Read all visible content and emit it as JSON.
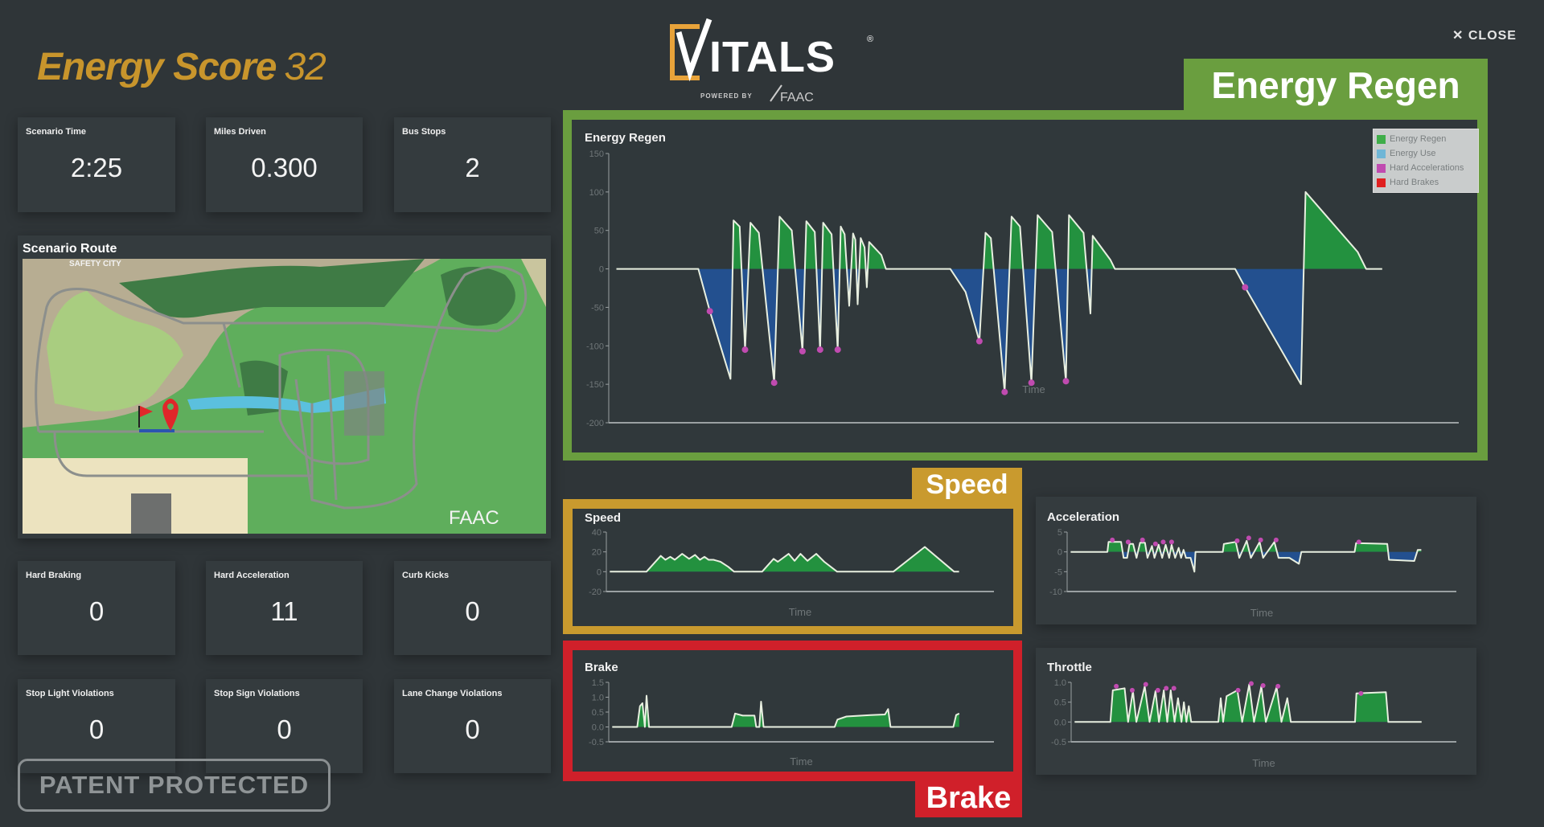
{
  "header": {
    "energy_score_label": "Energy Score",
    "energy_score_value": "32",
    "logo_text": "VITALS",
    "logo_powered_by": "POWERED BY",
    "logo_brand": "FAAC",
    "close_label": "CLOSE",
    "close_icon": "x-icon"
  },
  "stats": [
    {
      "label": "Scenario Time",
      "value": "2:25"
    },
    {
      "label": "Miles Driven",
      "value": "0.300"
    },
    {
      "label": "Bus Stops",
      "value": "2"
    },
    {
      "label": "Hard Braking",
      "value": "0"
    },
    {
      "label": "Hard Acceleration",
      "value": "11"
    },
    {
      "label": "Curb Kicks",
      "value": "0"
    },
    {
      "label": "Stop Light Violations",
      "value": "0"
    },
    {
      "label": "Stop Sign Violations",
      "value": "0"
    },
    {
      "label": "Lane Change Violations",
      "value": "0"
    }
  ],
  "route": {
    "title": "Scenario Route",
    "map_label": "SAFETY CITY",
    "map_watermark": "FAAC"
  },
  "patent_label": "PATENT PROTECTED",
  "highlights": {
    "energy_regen": "Energy Regen",
    "speed": "Speed",
    "brake": "Brake"
  },
  "colors": {
    "gold": "#c8952c",
    "regen_frame": "#6a9e3f",
    "speed_frame": "#c99a2e",
    "brake_frame": "#d0202a",
    "positive_fill": "#23913f",
    "negative_fill": "#23508f",
    "marker": "#c04bb0",
    "line": "#e8efe0"
  },
  "legend": [
    {
      "label": "Energy Regen",
      "color": "#3fae49"
    },
    {
      "label": "Energy Use",
      "color": "#6fb6d6"
    },
    {
      "label": "Hard Accelerations",
      "color": "#c04bb0"
    },
    {
      "label": "Hard Brakes",
      "color": "#e02020"
    }
  ],
  "chart_data": [
    {
      "id": "energy",
      "type": "area",
      "title": "Energy Regen",
      "xlabel": "Time",
      "ylim": [
        -200,
        150
      ],
      "yticks": [
        150,
        100,
        50,
        0,
        -50,
        -100,
        -150,
        -200
      ],
      "xlim": [
        -1,
        110
      ],
      "grid": false,
      "legend": "top-right",
      "series": [
        {
          "x": [
            0,
            10.7,
            12.2,
            14.9,
            15.3,
            16.1,
            16.8,
            17.5,
            18.6,
            20.6,
            21.3,
            22.9,
            24.3,
            24.8,
            25.9,
            26.6,
            27.0,
            28.1,
            28.9,
            29.3,
            29.8,
            30.4,
            30.9,
            31.2,
            31.5,
            31.9,
            32.4,
            32.7,
            33.0,
            34.6,
            35.2,
            43.6,
            45.6,
            47.4,
            48.2,
            48.9,
            50.7,
            51.6,
            52.7,
            54.2,
            55.0,
            56.9,
            58.7,
            59.1,
            61.0,
            61.9,
            62.2,
            64.5,
            65.1,
            80.8,
            82.1,
            89.4,
            90.0,
            96.8,
            97.9,
            100
          ],
          "y": [
            0,
            0,
            -55,
            -143,
            63,
            55,
            -105,
            60,
            47,
            -148,
            68,
            50,
            -107,
            62,
            48,
            -105,
            60,
            45,
            -105,
            55,
            45,
            -48,
            46,
            38,
            -46,
            40,
            28,
            -24,
            35,
            18,
            0,
            0,
            -30,
            -94,
            47,
            40,
            -160,
            68,
            55,
            -148,
            70,
            48,
            -146,
            70,
            47,
            -58,
            43,
            12,
            0,
            0,
            -24,
            -150,
            100,
            22,
            0,
            0
          ]
        }
      ],
      "markers": {
        "name": "Hard Accelerations",
        "x": [
          12.2,
          16.8,
          20.6,
          24.3,
          26.6,
          28.9,
          47.4,
          50.7,
          54.2,
          58.7,
          82.1
        ],
        "y": [
          -55,
          -105,
          -148,
          -107,
          -105,
          -105,
          -94,
          -160,
          -148,
          -146,
          -24
        ]
      }
    },
    {
      "id": "speed",
      "type": "area",
      "title": "Speed",
      "xlabel": "Time",
      "ylim": [
        -20,
        40
      ],
      "yticks": [
        40,
        20,
        0,
        -20
      ],
      "xlim": [
        -1,
        110
      ],
      "series": [
        {
          "x": [
            0,
            10.5,
            14.6,
            15.9,
            17.3,
            18.6,
            20.7,
            22.7,
            24.4,
            25.8,
            27.1,
            28.3,
            29.7,
            31.7,
            33.9,
            35.6,
            43.6,
            46.9,
            48.1,
            51.2,
            52.9,
            54.6,
            56.6,
            59.1,
            61.4,
            65.1,
            81.2,
            90.2,
            98.6,
            100
          ],
          "y": [
            0,
            0,
            16,
            12,
            15,
            12,
            18,
            13,
            17,
            12,
            15,
            12,
            12,
            10,
            5,
            0,
            0,
            13,
            10,
            18,
            11,
            18,
            11,
            18,
            10,
            0,
            0,
            25,
            0,
            0
          ]
        }
      ]
    },
    {
      "id": "accel",
      "type": "area",
      "title": "Acceleration",
      "xlabel": "Time",
      "ylim": [
        -10,
        5
      ],
      "yticks": [
        5,
        0,
        -5,
        -10
      ],
      "xlim": [
        -1,
        110
      ],
      "series": [
        {
          "x": [
            0,
            10.5,
            10.8,
            14.4,
            15.1,
            16.1,
            16.8,
            17.8,
            18.8,
            19.8,
            21.2,
            21.9,
            23.2,
            23.9,
            25.1,
            26.1,
            27.1,
            28.1,
            28.8,
            29.8,
            30.8,
            31.5,
            32.2,
            32.9,
            34.2,
            35.3,
            35.6,
            43.4,
            43.7,
            47.1,
            48.1,
            50.2,
            51.4,
            53.9,
            54.9,
            58.1,
            59.3,
            62.4,
            65.1,
            65.8,
            81,
            81.4,
            90.3,
            90.8,
            98,
            99,
            100
          ],
          "y": [
            0,
            0,
            2.5,
            2.5,
            -1.5,
            -1.5,
            2,
            2,
            -1.5,
            2.3,
            2.3,
            -1.5,
            1.5,
            -1.5,
            1.8,
            -1.5,
            1.8,
            -1.5,
            1.8,
            -1.5,
            1,
            -1.5,
            0.5,
            -1.5,
            -1.5,
            -5,
            0,
            0,
            2,
            2.5,
            -1.5,
            2.8,
            -1.5,
            2.5,
            -1.5,
            2.5,
            -1.5,
            -1.5,
            -3,
            0,
            0,
            2.2,
            2,
            -2,
            -2.3,
            0.5,
            0.5
          ]
        }
      ],
      "markers": {
        "name": "Hard Accelerations",
        "x": [
          11.9,
          16.4,
          20.5,
          24.2,
          26.4,
          28.8,
          47.5,
          50.8,
          54.2,
          58.6,
          82.2
        ],
        "y": [
          3,
          2.5,
          3,
          2,
          2.5,
          2.5,
          2.8,
          3.5,
          3,
          3,
          2.5
        ]
      }
    },
    {
      "id": "brake",
      "type": "area",
      "title": "Brake",
      "xlabel": "Time",
      "ylim": [
        -0.5,
        1.5
      ],
      "yticks": [
        "1.5",
        "1.0",
        "0.5",
        "0.0",
        "-0.5"
      ],
      "xlim": [
        -1,
        110
      ],
      "series": [
        {
          "x": [
            0,
            7.2,
            8.0,
            8.7,
            9.4,
            9.9,
            10.6,
            34.4,
            35.4,
            37.6,
            41,
            41.5,
            42.4,
            42.9,
            43.6,
            64.1,
            64.9,
            67.5,
            74.4,
            78.6,
            79.5,
            80.2,
            98.3,
            99.1,
            100
          ],
          "y": [
            0,
            0,
            0.7,
            0.8,
            0,
            1.05,
            0,
            0,
            0.45,
            0.38,
            0.38,
            0,
            0,
            0.85,
            0,
            0,
            0.25,
            0.35,
            0.4,
            0.42,
            0.6,
            0,
            0,
            0.4,
            0.45
          ]
        }
      ]
    },
    {
      "id": "throttle",
      "type": "area",
      "title": "Throttle",
      "xlabel": "Time",
      "ylim": [
        -0.5,
        1.0
      ],
      "yticks": [
        "1.0",
        "0.5",
        "0.0",
        "-0.5"
      ],
      "xlim": [
        -1,
        110
      ],
      "series": [
        {
          "x": [
            0,
            10.3,
            11,
            14.4,
            15.4,
            16.8,
            17.8,
            20.2,
            21.6,
            23.3,
            24.3,
            25.7,
            26.7,
            27.7,
            28.8,
            29.8,
            30.8,
            31.5,
            32.2,
            32.9,
            33.6,
            41.4,
            42.1,
            42.8,
            43.8,
            46.9,
            48.3,
            50.3,
            51.7,
            53.8,
            55.1,
            58.2,
            59.6,
            61.3,
            62.3,
            80.8,
            81.2,
            89.7,
            90.4,
            100
          ],
          "y": [
            0,
            0,
            0.8,
            0.85,
            0,
            0.78,
            0,
            0.9,
            0,
            0.78,
            0,
            0.8,
            0,
            0.8,
            0,
            0.6,
            0,
            0.5,
            0,
            0.4,
            0,
            0,
            0.6,
            0,
            0.65,
            0.8,
            0,
            0.95,
            0,
            0.9,
            0,
            0.88,
            0,
            0.6,
            0,
            0,
            0.72,
            0.75,
            0,
            0
          ]
        }
      ],
      "markers": {
        "name": "Hard Accelerations",
        "x": [
          12,
          16.6,
          20.5,
          24,
          26.4,
          28.6,
          47.1,
          50.9,
          54.3,
          58.6,
          82.5
        ],
        "y": [
          0.9,
          0.8,
          0.95,
          0.8,
          0.85,
          0.85,
          0.8,
          0.97,
          0.92,
          0.9,
          0.72
        ]
      }
    }
  ]
}
